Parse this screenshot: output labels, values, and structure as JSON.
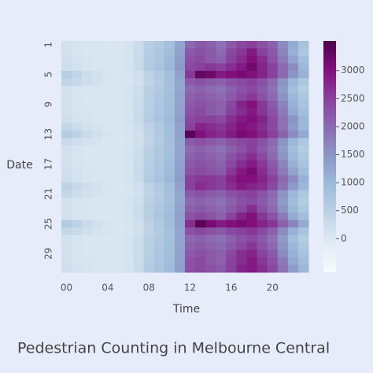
{
  "chart_data": {
    "type": "heatmap",
    "title": "Pedestrian Counting in Melbourne Central",
    "x_label": "Time",
    "y_label": "Date",
    "categories": [
      "00",
      null,
      null,
      null,
      "04",
      null,
      null,
      null,
      "08",
      null,
      null,
      null,
      "12",
      null,
      null,
      null,
      "16",
      null,
      null,
      null,
      "20",
      null,
      null,
      null
    ],
    "y_categories": [
      "1",
      null,
      null,
      null,
      "5",
      null,
      null,
      null,
      "9",
      null,
      null,
      null,
      "13",
      null,
      null,
      null,
      "17",
      null,
      null,
      null,
      "21",
      null,
      null,
      null,
      "25",
      null,
      null,
      null,
      "29",
      null,
      null
    ],
    "values": [
      [
        150,
        80,
        50,
        30,
        20,
        30,
        80,
        240,
        520,
        650,
        850,
        1250,
        2000,
        2200,
        2100,
        1900,
        2200,
        2400,
        2500,
        2300,
        2100,
        1600,
        1200,
        800
      ],
      [
        160,
        90,
        50,
        30,
        20,
        40,
        90,
        260,
        560,
        700,
        900,
        1300,
        2200,
        2300,
        2200,
        2000,
        2400,
        2600,
        2900,
        2500,
        2200,
        1700,
        1100,
        700
      ],
      [
        180,
        100,
        60,
        40,
        20,
        40,
        90,
        270,
        580,
        720,
        950,
        1350,
        2300,
        2400,
        2200,
        2100,
        2500,
        2700,
        3000,
        2700,
        2300,
        1800,
        1300,
        900
      ],
      [
        200,
        120,
        70,
        40,
        30,
        40,
        100,
        280,
        600,
        750,
        1000,
        1400,
        2400,
        2500,
        2600,
        2500,
        2700,
        2900,
        3200,
        2800,
        2500,
        2000,
        1600,
        1000
      ],
      [
        550,
        400,
        250,
        150,
        80,
        50,
        70,
        180,
        450,
        650,
        900,
        1300,
        2600,
        3300,
        3200,
        2900,
        3000,
        3100,
        3000,
        2800,
        2500,
        2000,
        1500,
        1100
      ],
      [
        400,
        300,
        200,
        120,
        60,
        40,
        60,
        150,
        420,
        600,
        850,
        1250,
        2200,
        2300,
        2200,
        2100,
        2300,
        2400,
        2500,
        2300,
        2000,
        1500,
        1000,
        700
      ],
      [
        140,
        70,
        40,
        30,
        20,
        30,
        80,
        230,
        500,
        650,
        850,
        1250,
        2000,
        2100,
        2000,
        1900,
        2100,
        2300,
        2400,
        2200,
        1900,
        1400,
        900,
        600
      ],
      [
        150,
        80,
        50,
        30,
        20,
        30,
        80,
        240,
        520,
        680,
        880,
        1280,
        2100,
        2200,
        2100,
        2000,
        2200,
        2400,
        2600,
        2300,
        2000,
        1500,
        1000,
        700
      ],
      [
        160,
        80,
        50,
        30,
        20,
        40,
        90,
        250,
        540,
        700,
        900,
        1300,
        2200,
        2300,
        2200,
        2100,
        2400,
        2800,
        3000,
        2600,
        2200,
        1700,
        1100,
        800
      ],
      [
        170,
        90,
        60,
        30,
        20,
        40,
        90,
        260,
        560,
        720,
        920,
        1320,
        2300,
        2400,
        2200,
        2100,
        2500,
        2700,
        2900,
        2600,
        2300,
        1800,
        1200,
        900
      ],
      [
        200,
        110,
        70,
        40,
        30,
        40,
        100,
        270,
        580,
        740,
        960,
        1380,
        2400,
        2500,
        2500,
        2400,
        2700,
        2900,
        3000,
        2800,
        2400,
        1900,
        1500,
        1000
      ],
      [
        350,
        250,
        150,
        100,
        50,
        40,
        80,
        200,
        480,
        660,
        900,
        1300,
        2500,
        2800,
        2700,
        2600,
        2800,
        3000,
        2900,
        2700,
        2400,
        1900,
        1400,
        1000
      ],
      [
        600,
        450,
        280,
        160,
        90,
        50,
        70,
        170,
        440,
        640,
        880,
        1300,
        3400,
        3000,
        2800,
        2700,
        2900,
        3100,
        3000,
        2800,
        2500,
        2100,
        1600,
        1200
      ],
      [
        300,
        200,
        120,
        80,
        40,
        40,
        70,
        160,
        420,
        600,
        850,
        1250,
        2200,
        2300,
        2200,
        2100,
        2300,
        2400,
        2500,
        2300,
        2000,
        1500,
        1000,
        700
      ],
      [
        140,
        70,
        40,
        30,
        20,
        30,
        80,
        230,
        510,
        660,
        860,
        1260,
        2000,
        2100,
        2000,
        1900,
        2100,
        2300,
        2500,
        2200,
        1900,
        1400,
        900,
        600
      ],
      [
        150,
        80,
        50,
        30,
        20,
        30,
        80,
        240,
        530,
        690,
        890,
        1290,
        2100,
        2200,
        2100,
        2000,
        2300,
        2500,
        2700,
        2400,
        2000,
        1500,
        1000,
        700
      ],
      [
        160,
        90,
        50,
        30,
        20,
        40,
        90,
        250,
        550,
        710,
        910,
        1310,
        2200,
        2300,
        2200,
        2100,
        2400,
        2700,
        2900,
        2600,
        2200,
        1700,
        1100,
        800
      ],
      [
        180,
        100,
        60,
        40,
        20,
        40,
        90,
        270,
        570,
        730,
        940,
        1340,
        2300,
        2400,
        2300,
        2200,
        2600,
        2900,
        3100,
        2700,
        2300,
        1800,
        1300,
        900
      ],
      [
        220,
        130,
        80,
        50,
        30,
        40,
        100,
        280,
        600,
        760,
        1000,
        1400,
        2500,
        2600,
        2600,
        2500,
        2800,
        3000,
        3000,
        2800,
        2500,
        2000,
        1600,
        1100
      ],
      [
        450,
        320,
        200,
        120,
        60,
        40,
        70,
        180,
        450,
        650,
        900,
        1300,
        2500,
        2700,
        2600,
        2500,
        2700,
        2900,
        2800,
        2700,
        2400,
        1900,
        1400,
        1000
      ],
      [
        350,
        250,
        160,
        100,
        50,
        40,
        60,
        150,
        420,
        610,
        860,
        1260,
        2200,
        2300,
        2200,
        2100,
        2300,
        2400,
        2500,
        2300,
        2000,
        1500,
        1000,
        700
      ],
      [
        140,
        70,
        40,
        30,
        20,
        30,
        80,
        230,
        500,
        650,
        850,
        1250,
        2000,
        2100,
        2000,
        1900,
        2100,
        2300,
        2400,
        2200,
        1900,
        1400,
        900,
        600
      ],
      [
        150,
        80,
        50,
        30,
        20,
        30,
        80,
        240,
        520,
        680,
        880,
        1280,
        2100,
        2200,
        2100,
        2000,
        2200,
        2400,
        2700,
        2300,
        2000,
        1500,
        1000,
        700
      ],
      [
        170,
        90,
        60,
        30,
        20,
        40,
        90,
        260,
        560,
        720,
        920,
        1320,
        2300,
        2400,
        2300,
        2100,
        2500,
        2800,
        3000,
        2600,
        2300,
        1800,
        1200,
        900
      ],
      [
        620,
        460,
        290,
        170,
        90,
        50,
        70,
        180,
        460,
        660,
        900,
        1320,
        2700,
        3400,
        3100,
        2900,
        3000,
        3100,
        3000,
        2800,
        2600,
        2100,
        1700,
        1200
      ],
      [
        380,
        280,
        180,
        110,
        60,
        40,
        60,
        160,
        430,
        620,
        870,
        1270,
        2300,
        2400,
        2300,
        2200,
        2400,
        2500,
        2600,
        2400,
        2100,
        1600,
        1100,
        800
      ],
      [
        150,
        80,
        50,
        30,
        20,
        30,
        80,
        240,
        520,
        660,
        860,
        1260,
        2000,
        2100,
        2000,
        1900,
        2100,
        2300,
        2400,
        2200,
        1900,
        1400,
        900,
        600
      ],
      [
        160,
        80,
        50,
        30,
        20,
        30,
        80,
        250,
        530,
        690,
        890,
        1290,
        2100,
        2200,
        2100,
        2000,
        2200,
        2400,
        2600,
        2300,
        2000,
        1500,
        1000,
        700
      ],
      [
        160,
        90,
        50,
        30,
        20,
        40,
        90,
        250,
        550,
        700,
        900,
        1300,
        2200,
        2300,
        2200,
        2100,
        2400,
        2700,
        2800,
        2500,
        2200,
        1600,
        1100,
        800
      ],
      [
        170,
        90,
        60,
        30,
        20,
        40,
        90,
        260,
        560,
        720,
        920,
        1320,
        2300,
        2400,
        2200,
        2100,
        2500,
        2700,
        2900,
        2600,
        2300,
        1800,
        1200,
        900
      ],
      [
        190,
        100,
        60,
        40,
        30,
        40,
        100,
        270,
        580,
        740,
        950,
        1360,
        2300,
        2400,
        2300,
        2200,
        2500,
        2800,
        2900,
        2700,
        2400,
        1900,
        1400,
        1000
      ]
    ],
    "clim": [
      -600,
      3530
    ],
    "colorbar_ticks": [
      0,
      500,
      1000,
      1500,
      2000,
      2500,
      3000
    ],
    "colormap": [
      "#f7fcfd",
      "#e0ecf4",
      "#bfd3e6",
      "#9ebcda",
      "#8c96c6",
      "#8c6bb1",
      "#88419d",
      "#810f7c",
      "#4d004b"
    ]
  }
}
